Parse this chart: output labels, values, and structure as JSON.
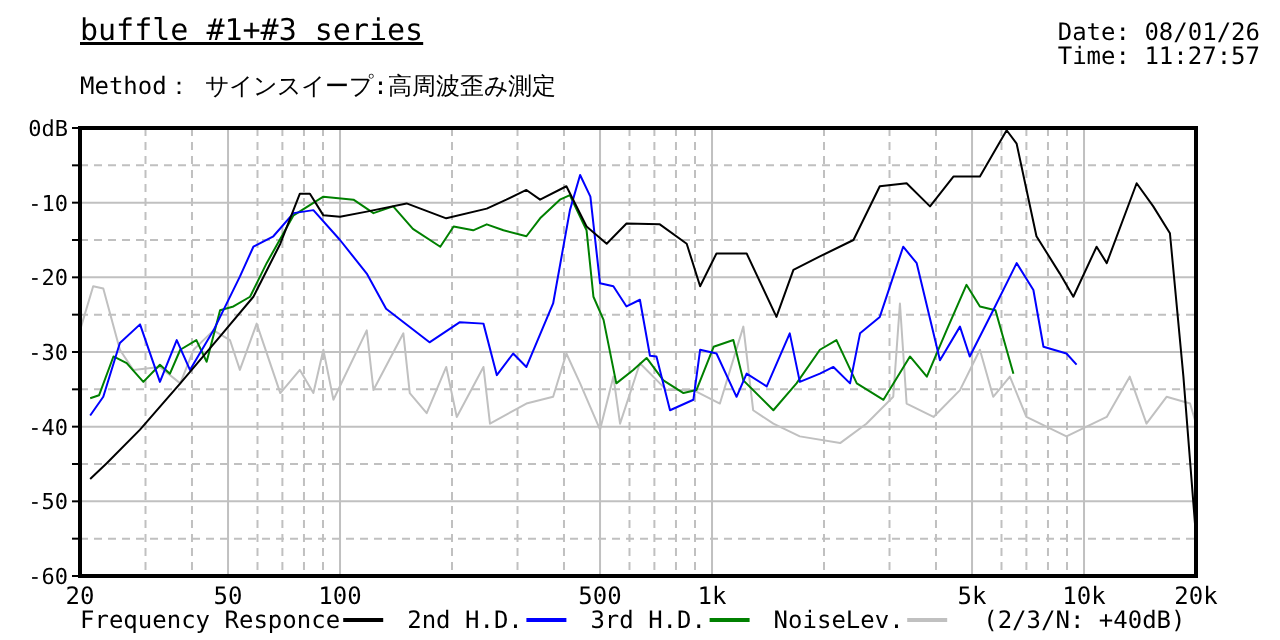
{
  "chart_data": {
    "type": "line",
    "title": "buffle #1+#3 series",
    "subtitle": "Method： サインスイープ:高周波歪み測定",
    "annotations": [
      "Date: 08/01/26",
      "Time: 11:27:57",
      "(2/3/N: +40dB)"
    ],
    "log": "x",
    "grid": true,
    "legend": "bottom",
    "line_style": "solid",
    "xlim": [
      20,
      20000
    ],
    "ylim": [
      -60,
      0
    ],
    "xticks": [
      20,
      {
        "value": 30,
        "label": null
      },
      {
        "value": 40,
        "label": null
      },
      50,
      {
        "value": 60,
        "label": null
      },
      {
        "value": 70,
        "label": null
      },
      {
        "value": 80,
        "label": null
      },
      {
        "value": 90,
        "label": null
      },
      100,
      {
        "value": 200,
        "label": null
      },
      {
        "value": 300,
        "label": null
      },
      {
        "value": 400,
        "label": null
      },
      500,
      {
        "value": 600,
        "label": null
      },
      {
        "value": 700,
        "label": null
      },
      {
        "value": 800,
        "label": null
      },
      {
        "value": 900,
        "label": null
      },
      {
        "value": 1000,
        "label": "1k"
      },
      {
        "value": 2000,
        "label": null
      },
      {
        "value": 3000,
        "label": null
      },
      {
        "value": 4000,
        "label": null
      },
      {
        "value": 5000,
        "label": "5k"
      },
      {
        "value": 6000,
        "label": null
      },
      {
        "value": 7000,
        "label": null
      },
      {
        "value": 8000,
        "label": null
      },
      {
        "value": 9000,
        "label": null
      },
      {
        "value": 10000,
        "label": "10k"
      },
      {
        "value": 20000,
        "label": "20k"
      }
    ],
    "yticks": [
      {
        "value": 0,
        "label": "0dB"
      },
      {
        "value": -5,
        "label": null
      },
      -10,
      {
        "value": -15,
        "label": null
      },
      -20,
      {
        "value": -25,
        "label": null
      },
      -30,
      {
        "value": -35,
        "label": null
      },
      -40,
      {
        "value": -45,
        "label": null
      },
      -50,
      {
        "value": -55,
        "label": null
      },
      -60
    ],
    "series": [
      {
        "name": "Frequency Responce",
        "color": "#000000",
        "x": [
          21.3,
          23.6,
          29,
          37.2,
          47.6,
          58.5,
          69.1,
          78,
          83,
          90.2,
          100,
          118,
          151,
          193,
          248,
          280,
          317,
          345,
          406,
          460,
          521,
          589,
          724,
          855,
          929,
          1028,
          1239,
          1490,
          1655,
          1950,
          2400,
          2825,
          3335,
          3855,
          4455,
          5250,
          6195,
          6590,
          7450,
          8610,
          9360,
          10810,
          11510,
          13850,
          15350,
          17020,
          18500,
          20000
        ],
        "values": [
          -47,
          -44.9,
          -40.4,
          -34.2,
          -27.9,
          -22.6,
          -15.5,
          -8.8,
          -8.8,
          -11.7,
          -11.9,
          -11.2,
          -10.1,
          -12.1,
          -10.8,
          -9.6,
          -8.3,
          -9.6,
          -7.8,
          -13.2,
          -15.5,
          -12.8,
          -12.9,
          -15.5,
          -21.2,
          -16.8,
          -16.8,
          -25.3,
          -19,
          -17.2,
          -15,
          -7.8,
          -7.4,
          -10.5,
          -6.5,
          -6.5,
          -0.3,
          -2.1,
          -14.5,
          -19.5,
          -22.6,
          -15.9,
          -18.1,
          -7.4,
          -10.5,
          -14.1,
          -33.3,
          -54.7
        ]
      },
      {
        "name": "2nd H.D.",
        "color": "#0000ff",
        "x": [
          21.3,
          23.1,
          25.6,
          29,
          32.8,
          36.4,
          39.5,
          45.7,
          53.8,
          58.5,
          66.2,
          75,
          84.8,
          100,
          118,
          133,
          174,
          210,
          243,
          264,
          292,
          317,
          374,
          415,
          442,
          471,
          500,
          543,
          589,
          640,
          681,
          709,
          771,
          891,
          929,
          1028,
          1164,
          1239,
          1403,
          1618,
          1722,
          1950,
          2120,
          2350,
          2500,
          2825,
          3265,
          3550,
          4100,
          4640,
          4930,
          5700,
          6590,
          7310,
          7780,
          8970,
          9550
        ],
        "values": [
          -38.5,
          -36,
          -28.8,
          -26.3,
          -34,
          -28.4,
          -32.4,
          -27.1,
          -19.9,
          -15.9,
          -14.5,
          -11.4,
          -11,
          -15,
          -19.5,
          -24.2,
          -28.7,
          -26,
          -26.2,
          -33.1,
          -30.2,
          -32,
          -23.5,
          -11,
          -6.3,
          -9.2,
          -20.8,
          -21.2,
          -23.9,
          -23,
          -30.5,
          -30.6,
          -37.8,
          -36.4,
          -29.7,
          -30.2,
          -36,
          -32.9,
          -34.6,
          -27.5,
          -34,
          -32.9,
          -32,
          -34.2,
          -27.5,
          -25.3,
          -15.9,
          -18.1,
          -31.1,
          -26.6,
          -30.6,
          -24.4,
          -18.1,
          -21.7,
          -29.3,
          -30.2,
          -31.7
        ]
      },
      {
        "name": "3rd H.D.",
        "color": "#008000",
        "x": [
          21.3,
          22.5,
          24.6,
          26.7,
          29.6,
          32.8,
          34.9,
          37.2,
          41.1,
          43.8,
          47.6,
          51.7,
          57.3,
          63.5,
          75,
          90.2,
          108.7,
          123,
          139,
          157,
          186,
          202,
          228,
          248,
          275,
          317,
          345,
          390,
          415,
          460,
          480,
          511,
          553,
          614,
          667,
          740,
          838,
          908,
          1010,
          1141,
          1214,
          1462,
          1687,
          1950,
          2160,
          2450,
          2890,
          3405,
          3780,
          4270,
          4830,
          5250,
          5780,
          6460
        ],
        "values": [
          -36.2,
          -35.8,
          -30.6,
          -31.5,
          -34,
          -31.7,
          -32.9,
          -29.7,
          -28.4,
          -31.3,
          -24.4,
          -23.9,
          -22.6,
          -18.1,
          -11.7,
          -9.2,
          -9.6,
          -11.4,
          -10.5,
          -13.5,
          -15.9,
          -13.2,
          -13.7,
          -12.9,
          -13.7,
          -14.5,
          -12.1,
          -9.6,
          -9,
          -13.7,
          -22.6,
          -25.7,
          -34.2,
          -32.4,
          -30.8,
          -33.8,
          -35.5,
          -35.1,
          -29.3,
          -28.4,
          -33.8,
          -37.8,
          -34.2,
          -29.7,
          -28.4,
          -34.2,
          -36.4,
          -30.6,
          -33.3,
          -27.1,
          -21,
          -23.9,
          -24.4,
          -32.9
        ]
      },
      {
        "name": "NoiseLev.",
        "color": "#c0c0c0",
        "x": [
          20,
          21.7,
          23.1,
          25.6,
          27.8,
          32.8,
          37.2,
          40.4,
          45.7,
          50.6,
          53.8,
          59.7,
          69.1,
          78,
          84.8,
          90.2,
          96,
          118,
          123,
          148,
          154,
          171,
          193,
          206,
          243,
          253,
          317,
          374,
          406,
          442,
          500,
          543,
          566,
          640,
          755,
          891,
          1050,
          1214,
          1290,
          1462,
          1722,
          2210,
          2600,
          3070,
          3200,
          3335,
          3940,
          4640,
          5250,
          5700,
          6320,
          7000,
          8970,
          11510,
          13270,
          14720,
          16670,
          19280,
          20000
        ],
        "values": [
          -27.1,
          -21.2,
          -21.5,
          -29.7,
          -32.4,
          -32,
          -34.2,
          -29.7,
          -27.1,
          -28.4,
          -32.4,
          -26.2,
          -35.5,
          -32.4,
          -35.5,
          -29.7,
          -36.4,
          -27.1,
          -35.1,
          -27.5,
          -35.5,
          -38.2,
          -32,
          -38.7,
          -32,
          -39.6,
          -36.9,
          -36,
          -30.2,
          -34.2,
          -40.4,
          -33.3,
          -39.6,
          -31.5,
          -35.1,
          -35.1,
          -36.9,
          -26.6,
          -37.8,
          -39.6,
          -41.3,
          -42.2,
          -39.6,
          -36,
          -23.5,
          -36.9,
          -38.7,
          -35.1,
          -29.7,
          -36,
          -33.3,
          -38.7,
          -41.3,
          -38.7,
          -33.3,
          -39.6,
          -36,
          -36.9,
          -39.6
        ]
      }
    ]
  }
}
